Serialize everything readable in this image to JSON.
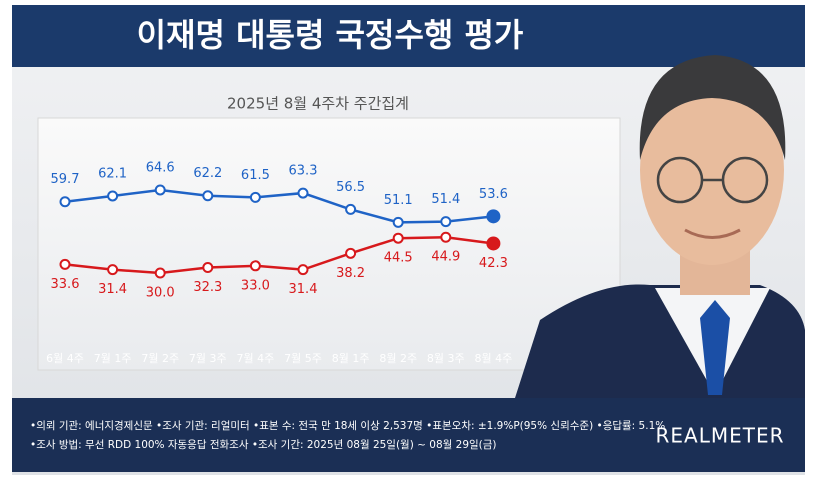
{
  "chart_data": {
    "type": "line",
    "title": "이재명 대통령 국정수행 평가",
    "subtitle": "2025년 8월 4주차 주간집계",
    "categories": [
      "6월 4주",
      "7월 1주",
      "7월 2주",
      "7월 3주",
      "7월 4주",
      "7월 5주",
      "8월 1주",
      "8월 2주",
      "8월 3주",
      "8월 4주"
    ],
    "series": [
      {
        "color": "#1f63c6",
        "values": [
          59.7,
          62.1,
          64.6,
          62.2,
          61.5,
          63.3,
          56.5,
          51.1,
          51.4,
          53.6
        ]
      },
      {
        "color": "#d7191c",
        "values": [
          33.6,
          31.4,
          30.0,
          32.3,
          33.0,
          31.4,
          38.2,
          44.5,
          44.9,
          42.3
        ],
        "value_labels": [
          "33.6",
          "31.4",
          "30.0",
          "32.3",
          "33.0",
          "31.4",
          "38.2",
          "44.5",
          "44.9",
          "42.3"
        ]
      }
    ]
  },
  "footer": {
    "notes": [
      "•의뢰 기관: 에너지경제신문 •조사 기관: 리얼미터 •표본 수: 전국 만 18세 이상 2,537명 •표본오차: ±1.9%P(95% 신뢰수준) •응답률: 5.1%",
      "•조사 방법: 무선 RDD 100% 자동응답 전화조사 •조사 기간: 2025년 08월 25일(월) ~ 08월 29일(금)"
    ],
    "brand": "REALMETER"
  }
}
